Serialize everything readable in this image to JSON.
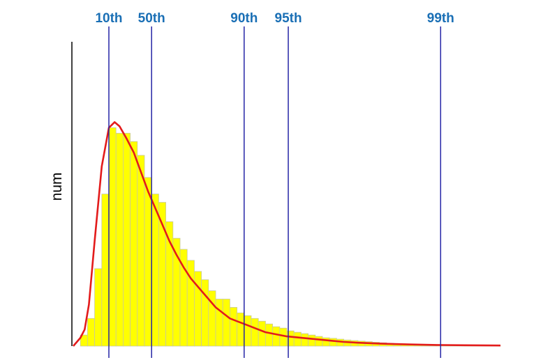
{
  "chart_data": {
    "type": "bar",
    "ylabel": "num",
    "xlabel": "",
    "title": "",
    "ylim": [
      0,
      100
    ],
    "grid": false,
    "colors": {
      "bars": "#ffff00",
      "bar_edge": "#c8c8a0",
      "curve": "#e31b1b",
      "percentile_lines": "#2525a6",
      "percentile_labels": "#1a6fb5"
    },
    "bin_values": [
      0,
      4,
      10,
      28,
      55,
      79,
      77,
      77,
      74,
      69,
      61,
      55,
      52,
      45,
      39,
      35,
      31,
      27,
      24,
      20,
      17,
      17,
      14,
      12,
      11,
      10,
      9,
      8,
      7,
      6.5,
      5.5,
      5,
      4.5,
      4,
      3.5,
      3,
      2.8,
      2.5,
      2.2,
      2,
      1.8,
      1.6,
      1.4,
      1.2,
      1,
      0.9,
      0.8,
      0.7,
      0.6,
      0.5,
      0.5,
      0.4,
      0.4,
      0.3,
      0.3,
      0.3,
      0.2,
      0.2,
      0.2,
      0.2
    ],
    "curve_points": [
      [
        0,
        0
      ],
      [
        1,
        3
      ],
      [
        1.6,
        6
      ],
      [
        2.2,
        15
      ],
      [
        3,
        38
      ],
      [
        4,
        65
      ],
      [
        5,
        79
      ],
      [
        5.8,
        81
      ],
      [
        6.5,
        79.5
      ],
      [
        7.5,
        75
      ],
      [
        8.5,
        70
      ],
      [
        9.5,
        63
      ],
      [
        10.5,
        56
      ],
      [
        11.5,
        50
      ],
      [
        12.5,
        44
      ],
      [
        13.5,
        38
      ],
      [
        14.5,
        33
      ],
      [
        15.5,
        28.5
      ],
      [
        16.5,
        24.5
      ],
      [
        18,
        20
      ],
      [
        19,
        17
      ],
      [
        20,
        14
      ],
      [
        21,
        12
      ],
      [
        22,
        10
      ],
      [
        23,
        9
      ],
      [
        24,
        8
      ],
      [
        25,
        7
      ],
      [
        26,
        6
      ],
      [
        27,
        5
      ],
      [
        28,
        4.5
      ],
      [
        30,
        3.5
      ],
      [
        32,
        3
      ],
      [
        34,
        2.5
      ],
      [
        36,
        2
      ],
      [
        38,
        1.5
      ],
      [
        40,
        1.2
      ],
      [
        43,
        0.9
      ],
      [
        47,
        0.6
      ],
      [
        51,
        0.4
      ],
      [
        55,
        0.3
      ],
      [
        60,
        0.2
      ]
    ],
    "percentiles": [
      {
        "label": "10th",
        "x": 5
      },
      {
        "label": "50th",
        "x": 11
      },
      {
        "label": "90th",
        "x": 24
      },
      {
        "label": "95th",
        "x": 30.2
      },
      {
        "label": "99th",
        "x": 51.6
      }
    ]
  }
}
